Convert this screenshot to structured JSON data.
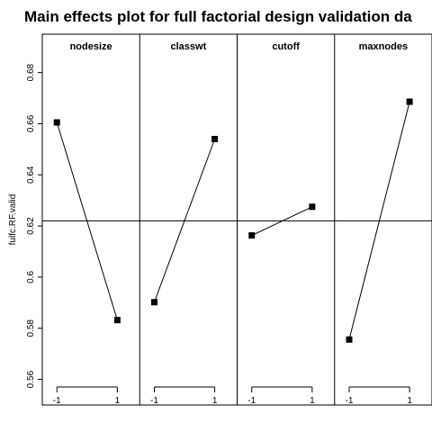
{
  "chart_data": {
    "type": "line",
    "title": "Main effects plot for full factorial design validation da",
    "ylabel": "fulfc.RF.valid",
    "ylim": [
      0.55,
      0.695
    ],
    "yticks": [
      "0.56",
      "0.58",
      "0.6",
      "0.62",
      "0.64",
      "0.66",
      "0.68"
    ],
    "ytick_values": [
      0.56,
      0.58,
      0.6,
      0.62,
      0.64,
      0.66,
      0.68
    ],
    "x_levels": [
      "-1",
      "1"
    ],
    "grand_mean": 0.622,
    "panels": [
      {
        "name": "nodesize",
        "values": [
          0.6605,
          0.5832
        ]
      },
      {
        "name": "classwt",
        "values": [
          0.5902,
          0.654
        ]
      },
      {
        "name": "cutoff",
        "values": [
          0.6163,
          0.6275
        ]
      },
      {
        "name": "maxnodes",
        "values": [
          0.5756,
          0.6686
        ]
      }
    ],
    "grid": false,
    "legend": "none",
    "colors": {
      "line": "#000000",
      "marker": "#000000",
      "frame": "#000000"
    }
  }
}
